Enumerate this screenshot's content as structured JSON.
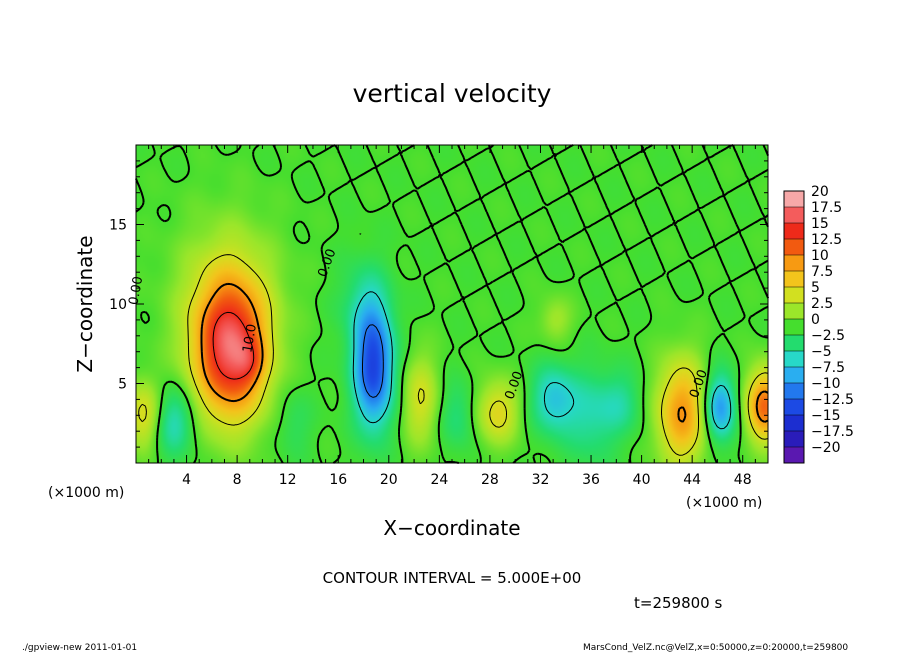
{
  "chart_data": {
    "type": "heatmap",
    "title": "vertical velocity",
    "xlabel": "X−coordinate",
    "ylabel": "Z−coordinate",
    "x_unit_left": "(×1000 m)",
    "x_unit_right": "(×1000 m)",
    "xlim": [
      0,
      50
    ],
    "ylim": [
      0,
      20
    ],
    "xticks": [
      4,
      8,
      12,
      16,
      20,
      24,
      28,
      32,
      36,
      40,
      44,
      48
    ],
    "yticks": [
      5,
      10,
      15
    ],
    "colorbar": {
      "levels": [
        20,
        17.5,
        15,
        12.5,
        10,
        7.5,
        5,
        2.5,
        0,
        -2.5,
        -5,
        -7.5,
        -10,
        -12.5,
        -15,
        -17.5,
        -20
      ],
      "labels": [
        "20",
        "17.5",
        "15",
        "12.5",
        "10",
        "7.5",
        "5",
        "2.5",
        "0",
        "−2.5",
        "−5",
        "−7.5",
        "−10",
        "−12.5",
        "−15",
        "−17.5",
        "−20"
      ],
      "colors": [
        "#f7a8a8",
        "#f45c5c",
        "#ee2a1a",
        "#f25a10",
        "#f79a12",
        "#f3c41c",
        "#d2e020",
        "#9be62a",
        "#45de2e",
        "#23dc6e",
        "#27d8c8",
        "#2aaef0",
        "#2278ee",
        "#1c4ae4",
        "#1c2ed0",
        "#2a1cba",
        "#5a18b0"
      ]
    },
    "features": [
      {
        "x": 7.5,
        "z": 7.0,
        "sx": 2.0,
        "sz": 3.0,
        "w": 16
      },
      {
        "x": 9.0,
        "z": 6.3,
        "sx": 0.8,
        "sz": 0.9,
        "w": 3
      },
      {
        "x": 7.2,
        "z": 10.5,
        "sx": 2.8,
        "sz": 3.4,
        "w": 4
      },
      {
        "x": 0.6,
        "z": 3.0,
        "sx": 1.0,
        "sz": 1.5,
        "w": 6
      },
      {
        "x": 3.0,
        "z": 2.6,
        "sx": 1.2,
        "sz": 1.5,
        "w": -5
      },
      {
        "x": 12.5,
        "z": 2.5,
        "sx": 1.0,
        "sz": 1.5,
        "w": -2
      },
      {
        "x": 18.8,
        "z": 6.0,
        "sx": 1.1,
        "sz": 2.6,
        "w": -13
      },
      {
        "x": 18.0,
        "z": 10.0,
        "sx": 1.4,
        "sz": 2.0,
        "w": -3
      },
      {
        "x": 22.5,
        "z": 4.0,
        "sx": 1.0,
        "sz": 2.0,
        "w": 5
      },
      {
        "x": 25.5,
        "z": 3.0,
        "sx": 1.0,
        "sz": 1.5,
        "w": -3
      },
      {
        "x": 28.6,
        "z": 3.2,
        "sx": 1.2,
        "sz": 1.4,
        "w": 6
      },
      {
        "x": 33.0,
        "z": 4.0,
        "sx": 1.2,
        "sz": 1.5,
        "w": -6
      },
      {
        "x": 36.0,
        "z": 3.0,
        "sx": 1.5,
        "sz": 2.0,
        "w": -4
      },
      {
        "x": 33.2,
        "z": 9.0,
        "sx": 0.9,
        "sz": 1.0,
        "w": 3
      },
      {
        "x": 38.5,
        "z": 3.8,
        "sx": 1.2,
        "sz": 1.4,
        "w": -3
      },
      {
        "x": 43.2,
        "z": 3.2,
        "sx": 1.4,
        "sz": 2.3,
        "w": 10
      },
      {
        "x": 46.2,
        "z": 3.5,
        "sx": 0.9,
        "sz": 1.5,
        "w": -9
      },
      {
        "x": 49.7,
        "z": 3.6,
        "sx": 1.0,
        "sz": 1.6,
        "w": 12
      }
    ],
    "contour_labels": [
      {
        "text": "10.0",
        "x": 9.3,
        "z": 7.8,
        "angle": -80
      },
      {
        "text": "0.00",
        "x": 0.3,
        "z": 10.8,
        "angle": -80
      },
      {
        "text": "0.00",
        "x": 15.4,
        "z": 12.5,
        "angle": -70
      },
      {
        "text": "0.00",
        "x": 30.2,
        "z": 4.8,
        "angle": -70
      },
      {
        "text": "0.00",
        "x": 44.8,
        "z": 4.9,
        "angle": -70
      }
    ],
    "contour_interval_text": "CONTOUR INTERVAL = 5.000E+00",
    "time_text": "t=259800 s"
  },
  "footer": {
    "left": "./gpview-new   2011-01-01",
    "right": "MarsCond_VelZ.nc@VelZ,x=0:50000,z=0:20000,t=259800"
  }
}
